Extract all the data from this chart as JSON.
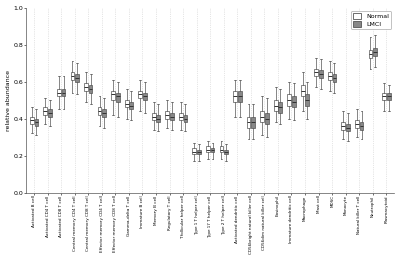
{
  "ylabel": "relative abundance",
  "ylim": [
    0.0,
    1.0
  ],
  "yticks": [
    0.0,
    0.2,
    0.4,
    0.6,
    0.8,
    1.0
  ],
  "categories": [
    "Activated B cell",
    "Activated CD4 T cell",
    "Activated CD8 T cell",
    "Central memory CD4 T cell",
    "Central memory CD8 T cell",
    "Effector memory CD4 T cell",
    "Effector memory CD8 T cell",
    "Gamma-delta T cell",
    "Immature B cell",
    "Memory B cell",
    "Regulatory T cell",
    "T follicular helper cell",
    "Type 1 T helper cell",
    "Type 17 T helper cell",
    "Type 2 T helper cell",
    "Activated dendritic cell",
    "CD56bright natural killer cell",
    "CD56dim natural killer cell",
    "Eosinophil",
    "Immature dendritic cell",
    "Macrophage",
    "Mast cell",
    "MDSC",
    "Monocyte",
    "Natural killer T cell",
    "Neutrophil",
    "Plasmacytoid"
  ],
  "normal_boxes": [
    {
      "med": 0.39,
      "q1": 0.37,
      "q3": 0.41,
      "whislo": 0.32,
      "whishi": 0.46
    },
    {
      "med": 0.44,
      "q1": 0.42,
      "q3": 0.46,
      "whislo": 0.37,
      "whishi": 0.51
    },
    {
      "med": 0.54,
      "q1": 0.52,
      "q3": 0.56,
      "whislo": 0.45,
      "whishi": 0.63
    },
    {
      "med": 0.63,
      "q1": 0.61,
      "q3": 0.65,
      "whislo": 0.54,
      "whishi": 0.71
    },
    {
      "med": 0.57,
      "q1": 0.55,
      "q3": 0.59,
      "whislo": 0.49,
      "whishi": 0.65
    },
    {
      "med": 0.44,
      "q1": 0.42,
      "q3": 0.46,
      "whislo": 0.36,
      "whishi": 0.52
    },
    {
      "med": 0.53,
      "q1": 0.5,
      "q3": 0.55,
      "whislo": 0.42,
      "whishi": 0.61
    },
    {
      "med": 0.48,
      "q1": 0.46,
      "q3": 0.5,
      "whislo": 0.4,
      "whishi": 0.56
    },
    {
      "med": 0.53,
      "q1": 0.51,
      "q3": 0.55,
      "whislo": 0.44,
      "whishi": 0.61
    },
    {
      "med": 0.41,
      "q1": 0.39,
      "q3": 0.43,
      "whislo": 0.34,
      "whishi": 0.49
    },
    {
      "med": 0.42,
      "q1": 0.4,
      "q3": 0.44,
      "whislo": 0.35,
      "whishi": 0.5
    },
    {
      "med": 0.41,
      "q1": 0.39,
      "q3": 0.43,
      "whislo": 0.34,
      "whishi": 0.49
    },
    {
      "med": 0.22,
      "q1": 0.21,
      "q3": 0.24,
      "whislo": 0.17,
      "whishi": 0.27
    },
    {
      "med": 0.23,
      "q1": 0.22,
      "q3": 0.25,
      "whislo": 0.18,
      "whishi": 0.28
    },
    {
      "med": 0.23,
      "q1": 0.22,
      "q3": 0.25,
      "whislo": 0.18,
      "whishi": 0.28
    },
    {
      "med": 0.52,
      "q1": 0.49,
      "q3": 0.55,
      "whislo": 0.41,
      "whishi": 0.61
    },
    {
      "med": 0.38,
      "q1": 0.35,
      "q3": 0.41,
      "whislo": 0.29,
      "whishi": 0.48
    },
    {
      "med": 0.41,
      "q1": 0.38,
      "q3": 0.44,
      "whislo": 0.31,
      "whishi": 0.52
    },
    {
      "med": 0.47,
      "q1": 0.44,
      "q3": 0.5,
      "whislo": 0.38,
      "whishi": 0.57
    },
    {
      "med": 0.5,
      "q1": 0.47,
      "q3": 0.53,
      "whislo": 0.4,
      "whishi": 0.6
    },
    {
      "med": 0.55,
      "q1": 0.52,
      "q3": 0.58,
      "whislo": 0.44,
      "whishi": 0.65
    },
    {
      "med": 0.65,
      "q1": 0.63,
      "q3": 0.67,
      "whislo": 0.57,
      "whishi": 0.73
    },
    {
      "med": 0.63,
      "q1": 0.61,
      "q3": 0.65,
      "whislo": 0.55,
      "whishi": 0.71
    },
    {
      "med": 0.36,
      "q1": 0.34,
      "q3": 0.38,
      "whislo": 0.29,
      "whishi": 0.44
    },
    {
      "med": 0.37,
      "q1": 0.35,
      "q3": 0.39,
      "whislo": 0.3,
      "whishi": 0.45
    },
    {
      "med": 0.75,
      "q1": 0.73,
      "q3": 0.77,
      "whislo": 0.67,
      "whishi": 0.84
    },
    {
      "med": 0.52,
      "q1": 0.5,
      "q3": 0.54,
      "whislo": 0.44,
      "whishi": 0.59
    }
  ],
  "lmci_boxes": [
    {
      "med": 0.38,
      "q1": 0.36,
      "q3": 0.4,
      "whislo": 0.31,
      "whishi": 0.45
    },
    {
      "med": 0.43,
      "q1": 0.41,
      "q3": 0.45,
      "whislo": 0.36,
      "whishi": 0.5
    },
    {
      "med": 0.54,
      "q1": 0.52,
      "q3": 0.56,
      "whislo": 0.45,
      "whishi": 0.63
    },
    {
      "med": 0.62,
      "q1": 0.6,
      "q3": 0.64,
      "whislo": 0.53,
      "whishi": 0.7
    },
    {
      "med": 0.56,
      "q1": 0.54,
      "q3": 0.58,
      "whislo": 0.48,
      "whishi": 0.64
    },
    {
      "med": 0.43,
      "q1": 0.41,
      "q3": 0.45,
      "whislo": 0.35,
      "whishi": 0.51
    },
    {
      "med": 0.52,
      "q1": 0.49,
      "q3": 0.54,
      "whislo": 0.41,
      "whishi": 0.6
    },
    {
      "med": 0.47,
      "q1": 0.45,
      "q3": 0.49,
      "whislo": 0.39,
      "whishi": 0.55
    },
    {
      "med": 0.52,
      "q1": 0.5,
      "q3": 0.54,
      "whislo": 0.43,
      "whishi": 0.6
    },
    {
      "med": 0.4,
      "q1": 0.38,
      "q3": 0.42,
      "whislo": 0.33,
      "whishi": 0.48
    },
    {
      "med": 0.41,
      "q1": 0.39,
      "q3": 0.43,
      "whislo": 0.34,
      "whishi": 0.49
    },
    {
      "med": 0.4,
      "q1": 0.38,
      "q3": 0.42,
      "whislo": 0.33,
      "whishi": 0.48
    },
    {
      "med": 0.22,
      "q1": 0.21,
      "q3": 0.23,
      "whislo": 0.17,
      "whishi": 0.26
    },
    {
      "med": 0.23,
      "q1": 0.22,
      "q3": 0.24,
      "whislo": 0.18,
      "whishi": 0.27
    },
    {
      "med": 0.22,
      "q1": 0.21,
      "q3": 0.23,
      "whislo": 0.17,
      "whishi": 0.26
    },
    {
      "med": 0.52,
      "q1": 0.49,
      "q3": 0.55,
      "whislo": 0.41,
      "whishi": 0.61
    },
    {
      "med": 0.38,
      "q1": 0.35,
      "q3": 0.41,
      "whislo": 0.29,
      "whishi": 0.48
    },
    {
      "med": 0.4,
      "q1": 0.37,
      "q3": 0.43,
      "whislo": 0.3,
      "whishi": 0.51
    },
    {
      "med": 0.46,
      "q1": 0.43,
      "q3": 0.49,
      "whislo": 0.37,
      "whishi": 0.56
    },
    {
      "med": 0.49,
      "q1": 0.46,
      "q3": 0.52,
      "whislo": 0.39,
      "whishi": 0.59
    },
    {
      "med": 0.5,
      "q1": 0.47,
      "q3": 0.53,
      "whislo": 0.4,
      "whishi": 0.6
    },
    {
      "med": 0.64,
      "q1": 0.62,
      "q3": 0.66,
      "whislo": 0.56,
      "whishi": 0.72
    },
    {
      "med": 0.62,
      "q1": 0.6,
      "q3": 0.64,
      "whislo": 0.54,
      "whishi": 0.7
    },
    {
      "med": 0.35,
      "q1": 0.33,
      "q3": 0.37,
      "whislo": 0.28,
      "whishi": 0.43
    },
    {
      "med": 0.36,
      "q1": 0.34,
      "q3": 0.38,
      "whislo": 0.29,
      "whishi": 0.44
    },
    {
      "med": 0.76,
      "q1": 0.74,
      "q3": 0.78,
      "whislo": 0.68,
      "whishi": 0.85
    },
    {
      "med": 0.52,
      "q1": 0.5,
      "q3": 0.54,
      "whislo": 0.44,
      "whishi": 0.58
    }
  ],
  "normal_color": "#ffffff",
  "lmci_color": "#888888",
  "box_edgecolor": "#555555",
  "whisker_color": "#555555",
  "median_color": "#333333",
  "grid_color": "#cccccc",
  "background_color": "#ffffff"
}
